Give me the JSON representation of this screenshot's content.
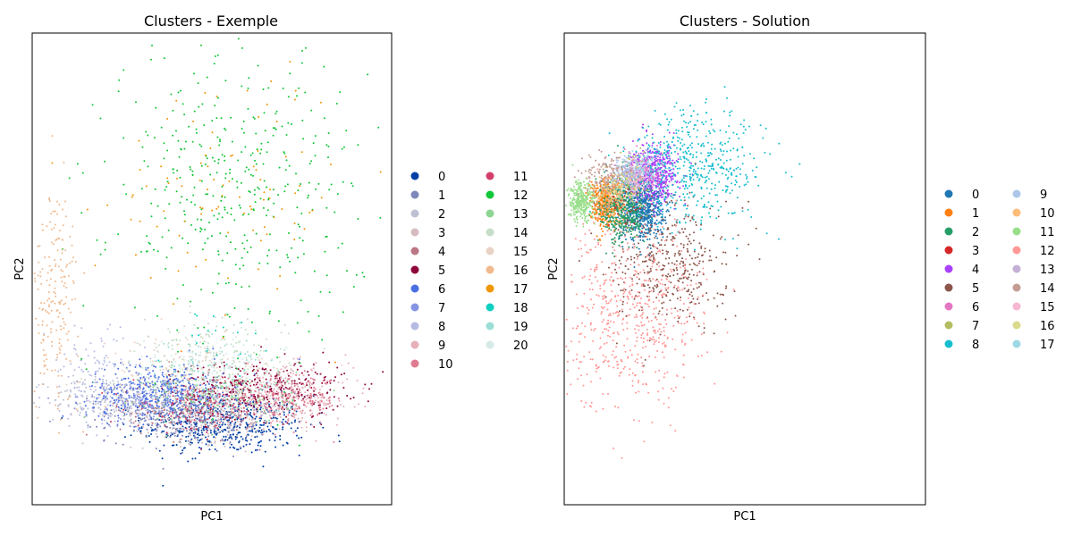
{
  "chart_data": [
    {
      "type": "scatter",
      "title": "Clusters - Exemple",
      "xlabel": "PC1",
      "ylabel": "PC2",
      "grid": false,
      "ticks": "none",
      "legend_position": "right",
      "legend_columns": 2,
      "legend": {
        "labels": [
          "0",
          "1",
          "2",
          "3",
          "4",
          "5",
          "6",
          "7",
          "8",
          "9",
          "10",
          "11",
          "12",
          "13",
          "14",
          "15",
          "16",
          "17",
          "18",
          "19",
          "20"
        ],
        "colors": [
          "#023fa5",
          "#7d87b9",
          "#bec1d4",
          "#d6bcc0",
          "#bb7784",
          "#8e063b",
          "#4a6fe3",
          "#8595e1",
          "#b5bbe3",
          "#e6afb9",
          "#e07b91",
          "#d33f6a",
          "#11c638",
          "#8dd593",
          "#c6dec7",
          "#ead3c6",
          "#f0b98d",
          "#ef9708",
          "#0fcfc0",
          "#9cded6",
          "#d5eae7"
        ]
      },
      "series": [
        {
          "cluster": "0",
          "color": "#023fa5",
          "cx": 0.42,
          "cy": -0.62,
          "sx": 0.13,
          "sy": 0.06,
          "n": 500
        },
        {
          "cluster": "1",
          "color": "#7d87b9",
          "cx": 0.28,
          "cy": -0.57,
          "sx": 0.12,
          "sy": 0.06,
          "n": 400
        },
        {
          "cluster": "2",
          "color": "#bec1d4",
          "cx": 0.05,
          "cy": -0.52,
          "sx": 0.1,
          "sy": 0.05,
          "n": 200
        },
        {
          "cluster": "3",
          "color": "#d6bcc0",
          "cx": 0.38,
          "cy": -0.57,
          "sx": 0.13,
          "sy": 0.06,
          "n": 300
        },
        {
          "cluster": "4",
          "color": "#bb7784",
          "cx": 0.3,
          "cy": -0.55,
          "sx": 0.11,
          "sy": 0.06,
          "n": 150
        },
        {
          "cluster": "5",
          "color": "#8e063b",
          "cx": 0.52,
          "cy": -0.47,
          "sx": 0.14,
          "sy": 0.06,
          "n": 400
        },
        {
          "cluster": "6",
          "color": "#4a6fe3",
          "cx": 0.22,
          "cy": -0.48,
          "sx": 0.12,
          "sy": 0.06,
          "n": 400
        },
        {
          "cluster": "7",
          "color": "#8595e1",
          "cx": 0.16,
          "cy": -0.52,
          "sx": 0.1,
          "sy": 0.05,
          "n": 150
        },
        {
          "cluster": "8",
          "color": "#b5bbe3",
          "cx": 0.0,
          "cy": -0.42,
          "sx": 0.08,
          "sy": 0.1,
          "n": 120
        },
        {
          "cluster": "9",
          "color": "#e6afb9",
          "cx": 0.62,
          "cy": -0.5,
          "sx": 0.1,
          "sy": 0.06,
          "n": 250
        },
        {
          "cluster": "10",
          "color": "#e07b91",
          "cx": 0.6,
          "cy": -0.52,
          "sx": 0.1,
          "sy": 0.05,
          "n": 200
        },
        {
          "cluster": "11",
          "color": "#d33f6a",
          "cx": 0.32,
          "cy": -0.55,
          "sx": 0.1,
          "sy": 0.05,
          "n": 100
        },
        {
          "cluster": "12",
          "color": "#11c638",
          "cx": 0.45,
          "cy": 0.35,
          "sx": 0.2,
          "sy": 0.3,
          "n": 420
        },
        {
          "cluster": "13",
          "color": "#8dd593",
          "cx": 0.4,
          "cy": -0.5,
          "sx": 0.12,
          "sy": 0.06,
          "n": 150
        },
        {
          "cluster": "14",
          "color": "#c6dec7",
          "cx": 0.38,
          "cy": -0.35,
          "sx": 0.12,
          "sy": 0.08,
          "n": 200
        },
        {
          "cluster": "15",
          "color": "#ead3c6",
          "cx": 0.3,
          "cy": -0.4,
          "sx": 0.15,
          "sy": 0.08,
          "n": 150
        },
        {
          "cluster": "16",
          "color": "#f0b98d",
          "cx": -0.13,
          "cy": -0.1,
          "sx": 0.04,
          "sy": 0.22,
          "n": 200
        },
        {
          "cluster": "17",
          "color": "#ef9708",
          "cx": 0.45,
          "cy": 0.38,
          "sx": 0.2,
          "sy": 0.25,
          "n": 100
        },
        {
          "cluster": "18",
          "color": "#0fcfc0",
          "cx": 0.4,
          "cy": -0.25,
          "sx": 0.1,
          "sy": 0.06,
          "n": 20
        },
        {
          "cluster": "19",
          "color": "#9cded6",
          "cx": 0.35,
          "cy": -0.4,
          "sx": 0.12,
          "sy": 0.06,
          "n": 80
        },
        {
          "cluster": "20",
          "color": "#d5eae7",
          "cx": 0.35,
          "cy": -0.38,
          "sx": 0.12,
          "sy": 0.07,
          "n": 100
        }
      ]
    },
    {
      "type": "scatter",
      "title": "Clusters - Solution",
      "xlabel": "PC1",
      "ylabel": "PC2",
      "grid": false,
      "ticks": "none",
      "legend_position": "right",
      "legend_columns": 2,
      "legend": {
        "labels": [
          "0",
          "1",
          "2",
          "3",
          "4",
          "5",
          "6",
          "7",
          "8",
          "9",
          "10",
          "11",
          "12",
          "13",
          "14",
          "15",
          "16",
          "17"
        ],
        "colors": [
          "#1f77b4",
          "#ff7f0e",
          "#279e68",
          "#d62728",
          "#aa40fc",
          "#8c564b",
          "#e377c2",
          "#b5bd61",
          "#17becf",
          "#aec7e8",
          "#ffbb78",
          "#98df8a",
          "#ff9896",
          "#c5b0d5",
          "#c49c94",
          "#f7b6d2",
          "#dbdb8d",
          "#9edae5"
        ]
      },
      "series": [
        {
          "cluster": "0",
          "color": "#1f77b4",
          "cx": 0.28,
          "cy": 0.28,
          "sx": 0.04,
          "sy": 0.07,
          "n": 700
        },
        {
          "cluster": "1",
          "color": "#ff7f0e",
          "cx": 0.15,
          "cy": 0.3,
          "sx": 0.03,
          "sy": 0.05,
          "n": 450
        },
        {
          "cluster": "2",
          "color": "#279e68",
          "cx": 0.21,
          "cy": 0.27,
          "sx": 0.04,
          "sy": 0.07,
          "n": 450
        },
        {
          "cluster": "3",
          "color": "#d62728",
          "cx": 0.22,
          "cy": 0.3,
          "sx": 0.03,
          "sy": 0.05,
          "n": 40
        },
        {
          "cluster": "4",
          "color": "#aa40fc",
          "cx": 0.33,
          "cy": 0.42,
          "sx": 0.04,
          "sy": 0.06,
          "n": 450
        },
        {
          "cluster": "5",
          "color": "#8c564b",
          "cx": 0.38,
          "cy": 0.05,
          "sx": 0.1,
          "sy": 0.13,
          "n": 380
        },
        {
          "cluster": "6",
          "color": "#e377c2",
          "cx": 0.28,
          "cy": 0.43,
          "sx": 0.04,
          "sy": 0.04,
          "n": 120
        },
        {
          "cluster": "7",
          "color": "#b5bd61",
          "cx": 0.24,
          "cy": 0.4,
          "sx": 0.03,
          "sy": 0.05,
          "n": 80
        },
        {
          "cluster": "8",
          "color": "#17becf",
          "cx": 0.48,
          "cy": 0.45,
          "sx": 0.12,
          "sy": 0.12,
          "n": 500
        },
        {
          "cluster": "9",
          "color": "#aec7e8",
          "cx": 0.23,
          "cy": 0.42,
          "sx": 0.03,
          "sy": 0.04,
          "n": 180
        },
        {
          "cluster": "10",
          "color": "#ffbb78",
          "cx": 0.16,
          "cy": 0.32,
          "sx": 0.03,
          "sy": 0.04,
          "n": 120
        },
        {
          "cluster": "11",
          "color": "#98df8a",
          "cx": 0.06,
          "cy": 0.3,
          "sx": 0.025,
          "sy": 0.04,
          "n": 300
        },
        {
          "cluster": "12",
          "color": "#ff9896",
          "cx": 0.25,
          "cy": -0.15,
          "sx": 0.13,
          "sy": 0.2,
          "n": 600
        },
        {
          "cluster": "13",
          "color": "#c5b0d5",
          "cx": 0.25,
          "cy": 0.42,
          "sx": 0.03,
          "sy": 0.04,
          "n": 100
        },
        {
          "cluster": "14",
          "color": "#c49c94",
          "cx": 0.15,
          "cy": 0.4,
          "sx": 0.04,
          "sy": 0.05,
          "n": 150
        },
        {
          "cluster": "15",
          "color": "#f7b6d2",
          "cx": 0.27,
          "cy": 0.38,
          "sx": 0.03,
          "sy": 0.04,
          "n": 50
        },
        {
          "cluster": "16",
          "color": "#dbdb8d",
          "cx": 0.22,
          "cy": 0.35,
          "sx": 0.03,
          "sy": 0.04,
          "n": 60
        },
        {
          "cluster": "17",
          "color": "#9edae5",
          "cx": 0.3,
          "cy": 0.45,
          "sx": 0.03,
          "sy": 0.04,
          "n": 60
        }
      ]
    }
  ]
}
